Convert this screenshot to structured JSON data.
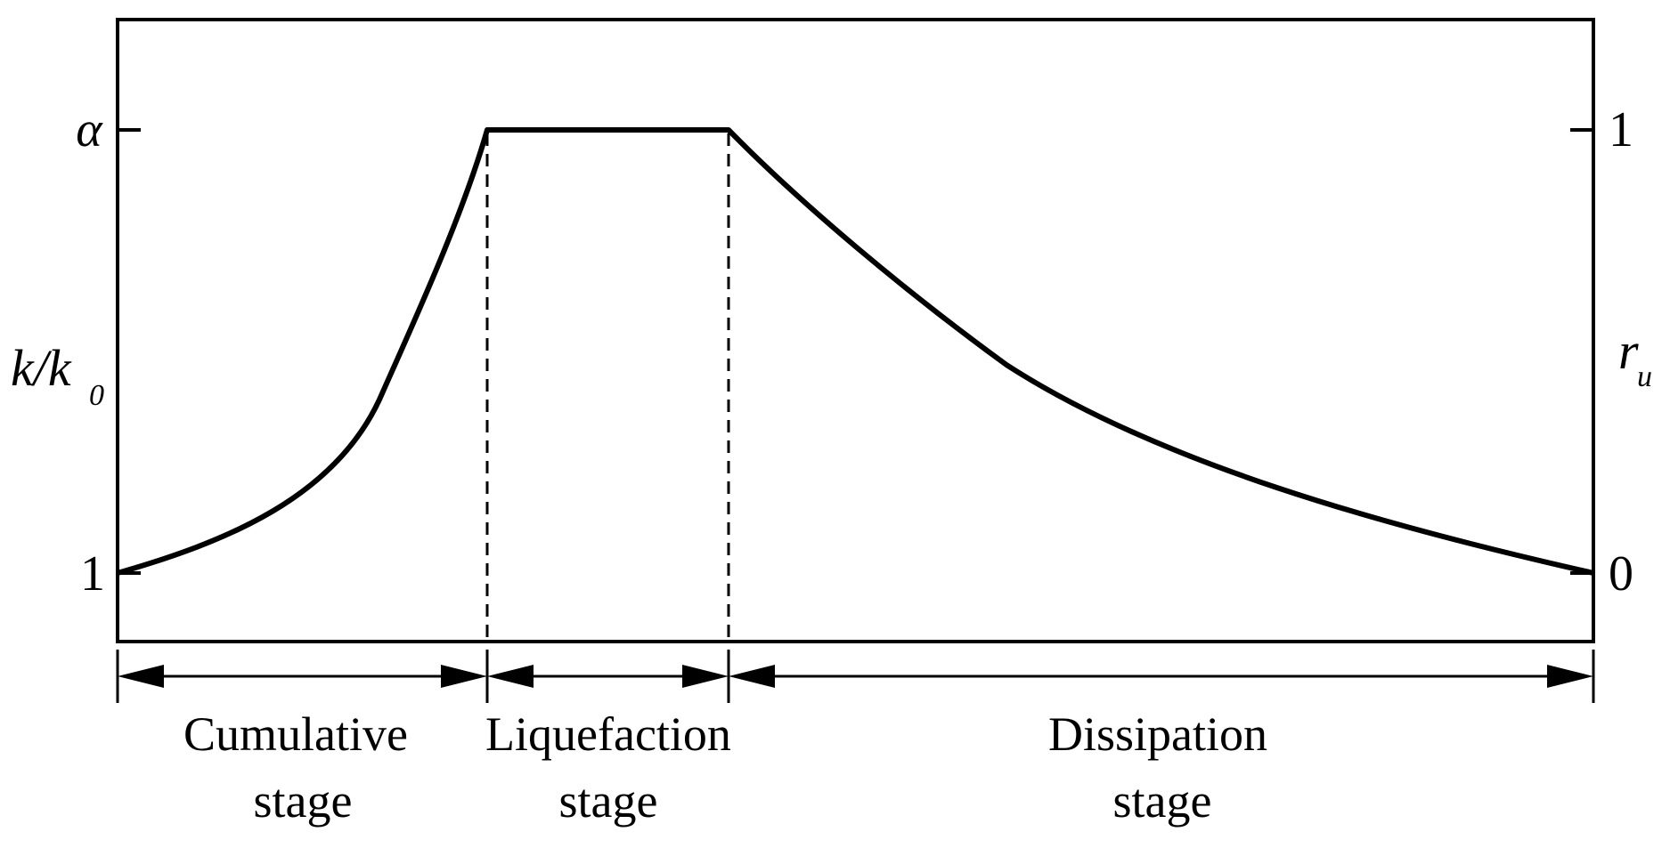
{
  "left_axis": {
    "label_main": "k/k",
    "label_sub": "0",
    "tick_top": "α",
    "tick_bottom": "1"
  },
  "right_axis": {
    "label_main": "r",
    "label_sub": "u",
    "tick_top": "1",
    "tick_bottom": "0"
  },
  "stages": [
    {
      "line1": "Cumulative",
      "line2": "stage"
    },
    {
      "line1": "Liquefaction",
      "line2": "stage"
    },
    {
      "line1": "Dissipation",
      "line2": "stage"
    }
  ]
}
